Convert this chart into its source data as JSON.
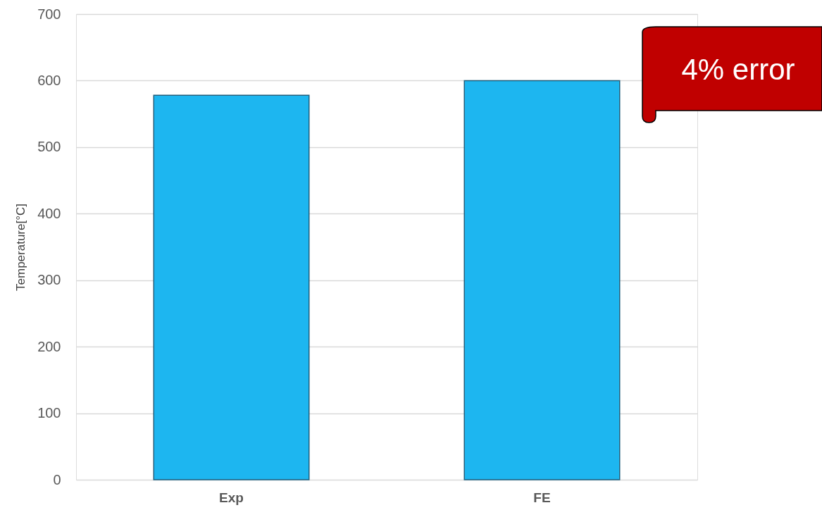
{
  "chart_data": {
    "type": "bar",
    "ylabel": "Temperature[°C]",
    "categories": [
      "Exp",
      "FE"
    ],
    "values": [
      578,
      600
    ],
    "color": "#1db6f0",
    "ylim": [
      0,
      700
    ],
    "yticks": [
      0,
      100,
      200,
      300,
      400,
      500,
      600,
      700
    ],
    "grid": "y",
    "annotations": [
      "4% error"
    ]
  }
}
